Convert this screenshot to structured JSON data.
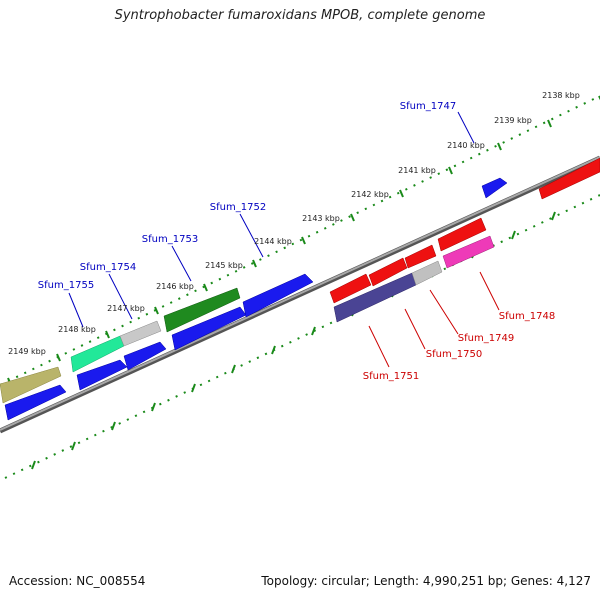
{
  "title": "Syntrophobacter fumaroxidans MPOB, complete genome",
  "footer": {
    "accession": "Accession: NC_008554",
    "stats": "Topology: circular; Length: 4,990,251 bp; Genes: 4,127"
  },
  "colors": {
    "background": "#ffffff",
    "backbone": "#8a8a8a",
    "tick": "#1a8a1a",
    "forward_label": "#0000c0",
    "reverse_label": "#cc0000",
    "gene_blue": "#1a1aee",
    "gene_red": "#ee1111",
    "gene_green": "#1f8a1f",
    "gene_mint": "#22e899",
    "gene_grey": "#b8b8b8",
    "gene_olive": "#b9b46a",
    "gene_magenta": "#ee3ab8",
    "gene_navy": "#4a4494"
  },
  "kbp_labels": [
    "2138 kbp",
    "2139 kbp",
    "2140 kbp",
    "2141 kbp",
    "2142 kbp",
    "2143 kbp",
    "2144 kbp",
    "2145 kbp",
    "2146 kbp",
    "2147 kbp",
    "2148 kbp",
    "2149 kbp"
  ],
  "forward_genes": [
    "Sfum_1747",
    "Sfum_1752",
    "Sfum_1753",
    "Sfum_1754",
    "Sfum_1755"
  ],
  "reverse_genes": [
    "Sfum_1748",
    "Sfum_1749",
    "Sfum_1750",
    "Sfum_1751"
  ]
}
